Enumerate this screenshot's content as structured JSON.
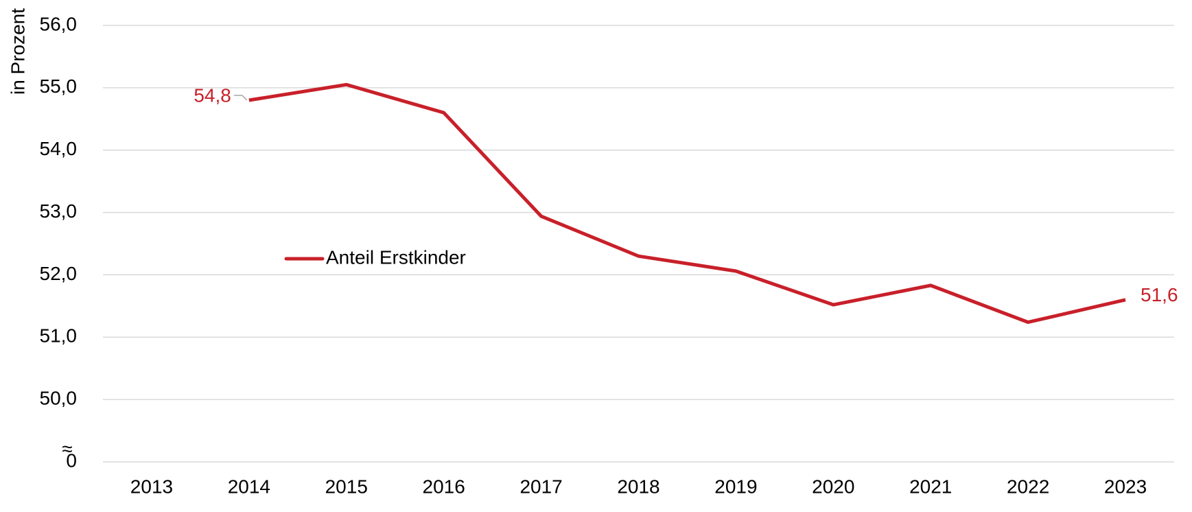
{
  "chart_data": {
    "type": "line",
    "y_label": "in Prozent",
    "axis_break": "≈",
    "categories": [
      "2013",
      "2014",
      "2015",
      "2016",
      "2017",
      "2018",
      "2019",
      "2020",
      "2021",
      "2022",
      "2023"
    ],
    "series": [
      {
        "name": "Anteil Erstkinder",
        "color": "#c8202a",
        "values": [
          null,
          54.8,
          55.05,
          54.6,
          52.94,
          52.3,
          52.06,
          51.52,
          51.83,
          51.24,
          51.6
        ],
        "value_labels": [
          null,
          "54,8",
          null,
          null,
          null,
          null,
          null,
          null,
          null,
          null,
          "51,6"
        ]
      }
    ],
    "ylim": [
      0,
      56
    ],
    "yticks": [
      0,
      {
        "value": 50,
        "label": "50,0"
      },
      {
        "value": 51,
        "label": "51,0"
      },
      {
        "value": 52,
        "label": "52,0"
      },
      {
        "value": 53,
        "label": "53,0"
      },
      {
        "value": 54,
        "label": "54,0"
      },
      {
        "value": 55,
        "label": "55,0"
      },
      {
        "value": 56,
        "label": "56,0"
      }
    ],
    "grid": true
  }
}
